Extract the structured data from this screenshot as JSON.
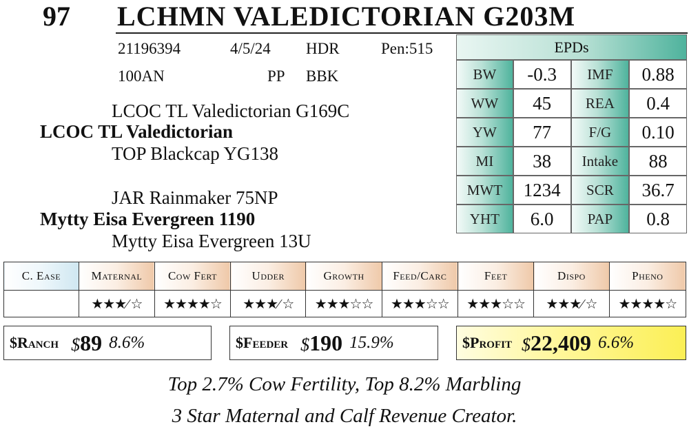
{
  "header": {
    "lot": "97",
    "name": "LCHMN VALEDICTORIAN G203M"
  },
  "info": {
    "reg": "21196394",
    "birth_date": "4/5/24",
    "type": "HDR",
    "pen": "Pen:515",
    "tattoo": "100AN",
    "pp": "PP",
    "color": "BBK"
  },
  "pedigree": {
    "sire_sire": "LCOC TL Valedictorian G169C",
    "sire": "LCOC TL Valedictorian",
    "sire_dam": "TOP Blackcap YG138",
    "dam_sire": "JAR Rainmaker 75NP",
    "dam": "Mytty Eisa Evergreen 1190",
    "dam_dam": "Mytty Eisa Evergreen 13U"
  },
  "epds": {
    "title": "EPDs",
    "rows": [
      {
        "l1": "BW",
        "v1": "-0.3",
        "l2": "IMF",
        "v2": "0.88"
      },
      {
        "l1": "WW",
        "v1": "45",
        "l2": "REA",
        "v2": "0.4"
      },
      {
        "l1": "YW",
        "v1": "77",
        "l2": "F/G",
        "v2": "0.10"
      },
      {
        "l1": "MI",
        "v1": "38",
        "l2": "Intake",
        "v2": "88"
      },
      {
        "l1": "MWT",
        "v1": "1234",
        "l2": "SCR",
        "v2": "36.7"
      },
      {
        "l1": "YHT",
        "v1": "6.0",
        "l2": "PAP",
        "v2": "0.8"
      }
    ]
  },
  "ratings": {
    "headers": [
      "C. Ease",
      "Maternal",
      "Cow Fert",
      "Udder",
      "Growth",
      "Feed/Carc",
      "Feet",
      "Dispo",
      "Pheno"
    ],
    "stars": [
      "",
      "★★★⁄ ☆",
      "★★★★☆",
      "★★★⁄ ☆",
      "★★★☆☆",
      "★★★☆☆",
      "★★★☆☆",
      "★★★⁄ ☆",
      "★★★★☆"
    ]
  },
  "indexes": {
    "ranch": {
      "label": "$Ranch",
      "value": "89",
      "pct": "8.6%"
    },
    "feeder": {
      "label": "$Feeder",
      "value": "190",
      "pct": "15.9%"
    },
    "profit": {
      "label": "$Profit",
      "value": "22,409",
      "pct": "6.6%"
    }
  },
  "footer": {
    "line1": "Top 2.7% Cow Fertility, Top 8.2% Marbling",
    "line2": "3 Star Maternal and Calf Revenue Creator."
  }
}
